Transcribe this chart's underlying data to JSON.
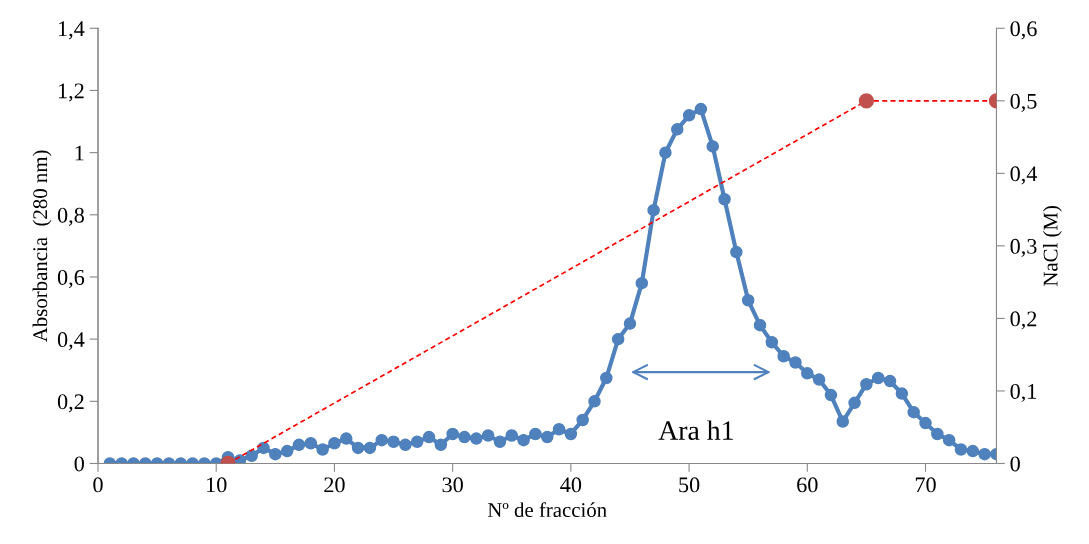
{
  "chart_data": {
    "type": "line",
    "xlabel": "Nº de fracción",
    "ylabel": "Absorbancia  (280 nm)",
    "y2label": "NaCl (M)",
    "xlim": [
      0,
      76
    ],
    "xticks": [
      0,
      10,
      20,
      30,
      40,
      50,
      60,
      70
    ],
    "ylim": [
      0,
      1.4
    ],
    "yticks": [
      {
        "value": 0,
        "label": "0"
      },
      {
        "value": 0.2,
        "label": "0,2"
      },
      {
        "value": 0.4,
        "label": "0,4"
      },
      {
        "value": 0.6,
        "label": "0,6"
      },
      {
        "value": 0.8,
        "label": "0,8"
      },
      {
        "value": 1,
        "label": "1"
      },
      {
        "value": 1.2,
        "label": "1,2"
      },
      {
        "value": 1.4,
        "label": "1,4"
      }
    ],
    "y2lim": [
      0,
      0.6
    ],
    "y2ticks": [
      {
        "value": 0,
        "label": "0"
      },
      {
        "value": 0.1,
        "label": "0,1"
      },
      {
        "value": 0.2,
        "label": "0,2"
      },
      {
        "value": 0.3,
        "label": "0,3"
      },
      {
        "value": 0.4,
        "label": "0,4"
      },
      {
        "value": 0.5,
        "label": "0,5"
      },
      {
        "value": 0.6,
        "label": "0,6"
      }
    ],
    "marker": "circle",
    "grid": false,
    "legend": false,
    "annotations": [
      "Ara h1"
    ],
    "series": [
      {
        "color": "#4f81bd",
        "line_style": "solid",
        "x": [
          1,
          2,
          3,
          4,
          5,
          6,
          7,
          8,
          9,
          10,
          11,
          12,
          13,
          14,
          15,
          16,
          17,
          18,
          19,
          20,
          21,
          22,
          23,
          24,
          25,
          26,
          27,
          28,
          29,
          30,
          31,
          32,
          33,
          34,
          35,
          36,
          37,
          38,
          39,
          40,
          41,
          42,
          43,
          44,
          45,
          46,
          47,
          48,
          49,
          50,
          51,
          52,
          53,
          54,
          55,
          56,
          57,
          58,
          59,
          60,
          61,
          62,
          63,
          64,
          65,
          66,
          67,
          68,
          69,
          70,
          71,
          72,
          73,
          74,
          75,
          76
        ],
        "values": [
          0,
          0,
          0,
          0,
          0,
          0,
          0,
          0,
          0,
          0,
          0.02,
          0.01,
          0.025,
          0.05,
          0.03,
          0.04,
          0.06,
          0.065,
          0.045,
          0.065,
          0.08,
          0.05,
          0.05,
          0.075,
          0.07,
          0.06,
          0.07,
          0.085,
          0.06,
          0.095,
          0.085,
          0.08,
          0.09,
          0.07,
          0.09,
          0.075,
          0.095,
          0.085,
          0.11,
          0.095,
          0.14,
          0.2,
          0.275,
          0.4,
          0.45,
          0.58,
          0.815,
          1.0,
          1.075,
          1.12,
          1.14,
          1.02,
          0.85,
          0.68,
          0.525,
          0.445,
          0.39,
          0.345,
          0.325,
          0.29,
          0.27,
          0.22,
          0.135,
          0.195,
          0.255,
          0.275,
          0.265,
          0.225,
          0.165,
          0.13,
          0.095,
          0.075,
          0.045,
          0.04,
          0.03,
          0.03
        ]
      },
      {
        "color": "#ff0000",
        "colors": [
          "#c0504d",
          "#c0504d",
          "#c0504d"
        ],
        "line_style": "dashed",
        "axis": "y2",
        "x": [
          11,
          65,
          76
        ],
        "values": [
          0,
          0.5,
          0.5
        ]
      }
    ]
  }
}
